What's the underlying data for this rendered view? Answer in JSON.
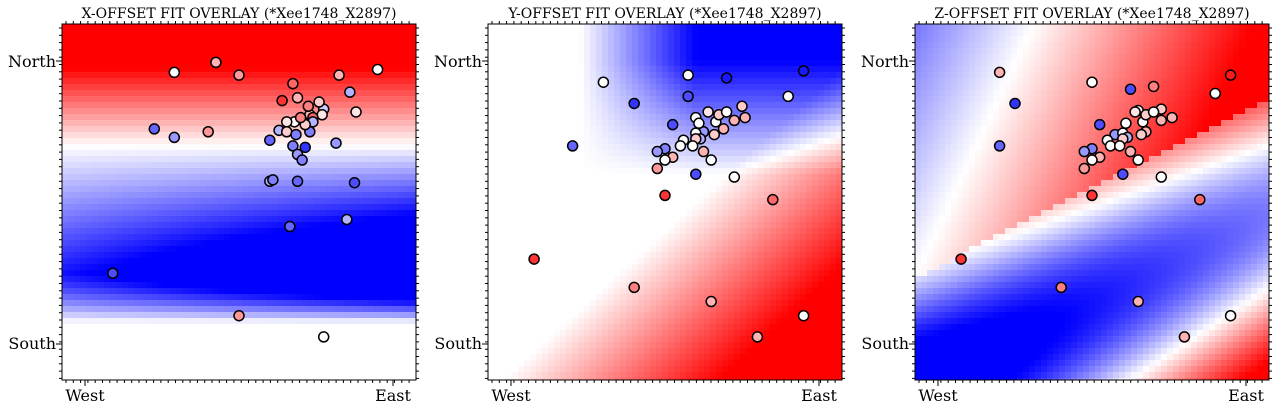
{
  "chart_data": [
    {
      "type": "scatter",
      "title": "X-OFFSET FIT OVERLAY (*Xee1748_X2897)",
      "x_tick_labels": [
        "West",
        "East"
      ],
      "y_tick_labels": [
        "North",
        "South"
      ],
      "colormap": [
        "#0000ff",
        "#ffffff",
        "#ff0000"
      ],
      "field": "x",
      "points": [
        [
          0.0,
          0.9,
          0.4
        ],
        [
          -0.42,
          0.92,
          0.0
        ],
        [
          -0.15,
          0.99,
          0.3
        ],
        [
          0.9,
          0.94,
          0.0
        ],
        [
          0.35,
          0.84,
          0.6
        ],
        [
          0.72,
          0.78,
          -0.3
        ],
        [
          0.28,
          0.72,
          0.8
        ],
        [
          0.55,
          0.66,
          -0.2
        ],
        [
          0.76,
          0.64,
          0.1
        ],
        [
          0.46,
          0.62,
          0.3
        ],
        [
          0.54,
          0.62,
          0.1
        ],
        [
          0.48,
          0.6,
          0.6
        ],
        [
          0.48,
          0.57,
          -0.3
        ],
        [
          0.36,
          0.57,
          0.0
        ],
        [
          0.31,
          0.57,
          0.1
        ],
        [
          0.26,
          0.51,
          -0.3
        ],
        [
          0.31,
          0.5,
          0.2
        ],
        [
          0.46,
          0.5,
          -0.5
        ],
        [
          0.37,
          0.48,
          -0.5
        ],
        [
          0.2,
          0.44,
          -0.6
        ],
        [
          0.63,
          0.42,
          -0.4
        ],
        [
          -0.2,
          0.5,
          0.4
        ],
        [
          -0.42,
          0.46,
          -0.4
        ],
        [
          0.35,
          0.4,
          -0.5
        ],
        [
          0.43,
          0.39,
          -0.8
        ],
        [
          0.38,
          0.34,
          -0.4
        ],
        [
          0.41,
          0.3,
          -0.5
        ],
        [
          0.2,
          0.15,
          -0.3
        ],
        [
          0.22,
          0.16,
          -0.5
        ],
        [
          0.38,
          0.15,
          -0.6
        ],
        [
          0.75,
          0.14,
          -0.7
        ],
        [
          0.7,
          -0.12,
          -0.3
        ],
        [
          0.33,
          -0.17,
          -0.6
        ],
        [
          -0.55,
          0.52,
          -0.6
        ],
        [
          0.65,
          0.9,
          0.3
        ],
        [
          -0.82,
          -0.5,
          -0.7
        ],
        [
          0.0,
          -0.8,
          0.4
        ],
        [
          0.55,
          -0.95,
          0.0
        ],
        [
          0.45,
          0.68,
          0.5
        ],
        [
          0.38,
          0.74,
          0.3
        ],
        [
          0.52,
          0.71,
          0.2
        ],
        [
          0.43,
          0.55,
          0.2
        ],
        [
          0.4,
          0.6,
          0.5
        ]
      ]
    },
    {
      "type": "scatter",
      "title": "Y-OFFSET FIT OVERLAY (*Xee1748_X2897)",
      "x_tick_labels": [
        "West",
        "East"
      ],
      "y_tick_labels": [
        "North",
        "South"
      ],
      "colormap": [
        "#0000ff",
        "#ffffff",
        "#ff0000"
      ],
      "field": "y",
      "points": [
        [
          -0.4,
          0.85,
          0.0
        ],
        [
          0.15,
          0.9,
          0.0
        ],
        [
          0.4,
          0.88,
          -0.9
        ],
        [
          0.9,
          0.93,
          -0.9
        ],
        [
          0.15,
          0.75,
          -0.7
        ],
        [
          0.8,
          0.75,
          0.0
        ],
        [
          -0.2,
          0.7,
          -0.8
        ],
        [
          0.5,
          0.68,
          0.2
        ],
        [
          0.2,
          0.6,
          0.0
        ],
        [
          0.05,
          0.55,
          -0.7
        ],
        [
          0.38,
          0.52,
          0.3
        ],
        [
          0.25,
          0.5,
          -0.4
        ],
        [
          0.2,
          0.49,
          0.0
        ],
        [
          0.23,
          0.45,
          -0.3
        ],
        [
          0.2,
          0.45,
          0.2
        ],
        [
          0.12,
          0.44,
          0.0
        ],
        [
          0.1,
          0.4,
          0.0
        ],
        [
          0.18,
          0.4,
          0.0
        ],
        [
          0.0,
          0.38,
          -0.5
        ],
        [
          0.25,
          0.36,
          0.3
        ],
        [
          0.3,
          0.3,
          0.0
        ],
        [
          -0.6,
          0.4,
          -0.6
        ],
        [
          -0.05,
          0.36,
          -0.4
        ],
        [
          0.05,
          0.32,
          0.3
        ],
        [
          0.0,
          0.3,
          0.0
        ],
        [
          -0.05,
          0.24,
          0.4
        ],
        [
          0.2,
          0.2,
          -0.7
        ],
        [
          0.45,
          0.18,
          0.0
        ],
        [
          0.7,
          0.02,
          0.6
        ],
        [
          0.0,
          0.05,
          0.8
        ],
        [
          -0.85,
          -0.4,
          0.8
        ],
        [
          -0.2,
          -0.6,
          0.5
        ],
        [
          0.3,
          -0.7,
          0.3
        ],
        [
          0.9,
          -0.8,
          0.0
        ],
        [
          0.6,
          -0.95,
          0.3
        ],
        [
          0.33,
          0.57,
          0.0
        ],
        [
          0.35,
          0.62,
          0.2
        ],
        [
          0.45,
          0.58,
          0.3
        ],
        [
          0.4,
          0.64,
          0.0
        ],
        [
          0.28,
          0.64,
          0.1
        ],
        [
          0.32,
          0.48,
          0.2
        ],
        [
          0.22,
          0.56,
          0.0
        ],
        [
          0.52,
          0.6,
          0.3
        ]
      ]
    },
    {
      "type": "scatter",
      "title": "Z-OFFSET FIT OVERLAY (*Xee1748_X2897)",
      "x_tick_labels": [
        "West",
        "East"
      ],
      "y_tick_labels": [
        "North",
        "South"
      ],
      "colormap": [
        "#0000ff",
        "#ffffff",
        "#ff0000"
      ],
      "field": "z",
      "points": [
        [
          -0.6,
          0.92,
          0.3
        ],
        [
          0.0,
          0.85,
          0.0
        ],
        [
          0.4,
          0.82,
          0.5
        ],
        [
          0.9,
          0.9,
          0.9
        ],
        [
          0.25,
          0.8,
          -0.7
        ],
        [
          0.8,
          0.77,
          0.0
        ],
        [
          -0.5,
          0.7,
          -0.8
        ],
        [
          0.45,
          0.66,
          0.2
        ],
        [
          0.3,
          0.65,
          0.0
        ],
        [
          0.05,
          0.55,
          -0.7
        ],
        [
          0.35,
          0.5,
          0.3
        ],
        [
          0.15,
          0.48,
          -0.4
        ],
        [
          0.2,
          0.49,
          0.0
        ],
        [
          0.23,
          0.46,
          -0.3
        ],
        [
          0.2,
          0.45,
          0.2
        ],
        [
          0.1,
          0.44,
          0.0
        ],
        [
          0.12,
          0.4,
          0.0
        ],
        [
          0.18,
          0.4,
          0.0
        ],
        [
          0.0,
          0.38,
          -0.5
        ],
        [
          0.25,
          0.36,
          0.3
        ],
        [
          0.3,
          0.3,
          0.0
        ],
        [
          -0.6,
          0.4,
          -0.6
        ],
        [
          -0.05,
          0.36,
          -0.4
        ],
        [
          0.05,
          0.32,
          0.3
        ],
        [
          0.0,
          0.3,
          0.0
        ],
        [
          -0.05,
          0.24,
          0.4
        ],
        [
          0.2,
          0.2,
          -0.7
        ],
        [
          0.45,
          0.18,
          0.0
        ],
        [
          0.7,
          0.02,
          0.6
        ],
        [
          0.0,
          0.05,
          0.8
        ],
        [
          -0.85,
          -0.4,
          0.8
        ],
        [
          -0.2,
          -0.6,
          0.5
        ],
        [
          0.3,
          -0.7,
          0.3
        ],
        [
          0.9,
          -0.8,
          0.0
        ],
        [
          0.6,
          -0.95,
          0.3
        ],
        [
          0.33,
          0.57,
          0.0
        ],
        [
          0.35,
          0.62,
          0.2
        ],
        [
          0.45,
          0.58,
          0.3
        ],
        [
          0.4,
          0.64,
          0.0
        ],
        [
          0.28,
          0.64,
          0.1
        ],
        [
          0.32,
          0.48,
          0.2
        ],
        [
          0.22,
          0.56,
          0.0
        ],
        [
          0.52,
          0.6,
          0.3
        ]
      ]
    }
  ]
}
